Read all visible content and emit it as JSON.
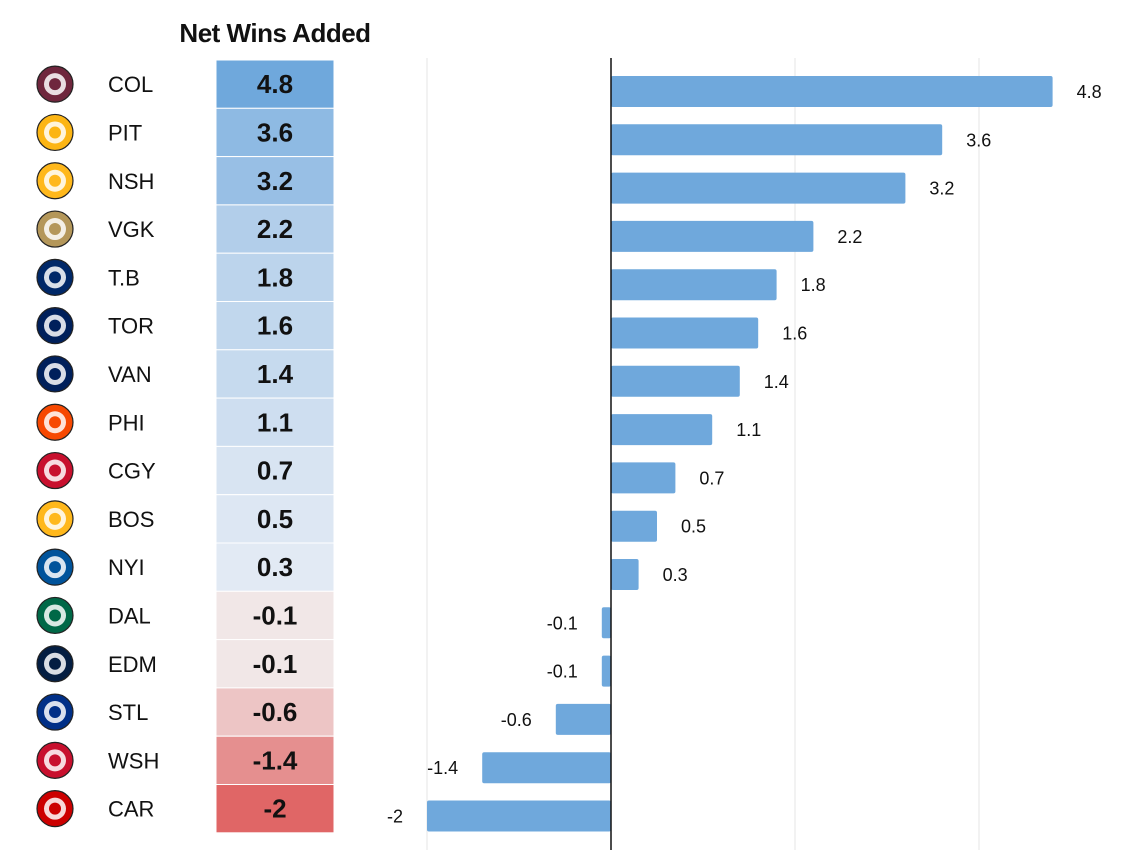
{
  "header": {
    "title": "Net Wins Added"
  },
  "chart_data": {
    "type": "bar",
    "orientation": "horizontal",
    "metric": "Net Wins Added",
    "categories": [
      "COL",
      "PIT",
      "NSH",
      "VGK",
      "T.B",
      "TOR",
      "VAN",
      "PHI",
      "CGY",
      "BOS",
      "NYI",
      "DAL",
      "EDM",
      "STL",
      "WSH",
      "CAR"
    ],
    "values": [
      4.8,
      3.6,
      3.2,
      2.2,
      1.8,
      1.6,
      1.4,
      1.1,
      0.7,
      0.5,
      0.3,
      -0.1,
      -0.1,
      -0.6,
      -1.4,
      -2
    ],
    "value_labels": [
      "4.8",
      "3.6",
      "3.2",
      "2.2",
      "1.8",
      "1.6",
      "1.4",
      "1.1",
      "0.7",
      "0.5",
      "0.3",
      "-0.1",
      "-0.1",
      "-0.6",
      "-1.4",
      "-2"
    ],
    "team_colors": [
      "#6F263D",
      "#FCB514",
      "#FFB81C",
      "#B4975A",
      "#002868",
      "#00205B",
      "#00205B",
      "#F74902",
      "#C8102E",
      "#FFB81C",
      "#00539B",
      "#006847",
      "#041E42",
      "#002F87",
      "#C8102E",
      "#CC0000"
    ],
    "bar_color": "#6fa8dc",
    "zero_line_color": "#111111",
    "grid": true,
    "xlim": [
      -2.5,
      5
    ],
    "grid_values": [
      -2,
      0,
      2,
      4
    ],
    "heat_colors": {
      "positive": "#6fa8dc",
      "neutral": "#f2eeee",
      "negative": "#e06666"
    }
  }
}
